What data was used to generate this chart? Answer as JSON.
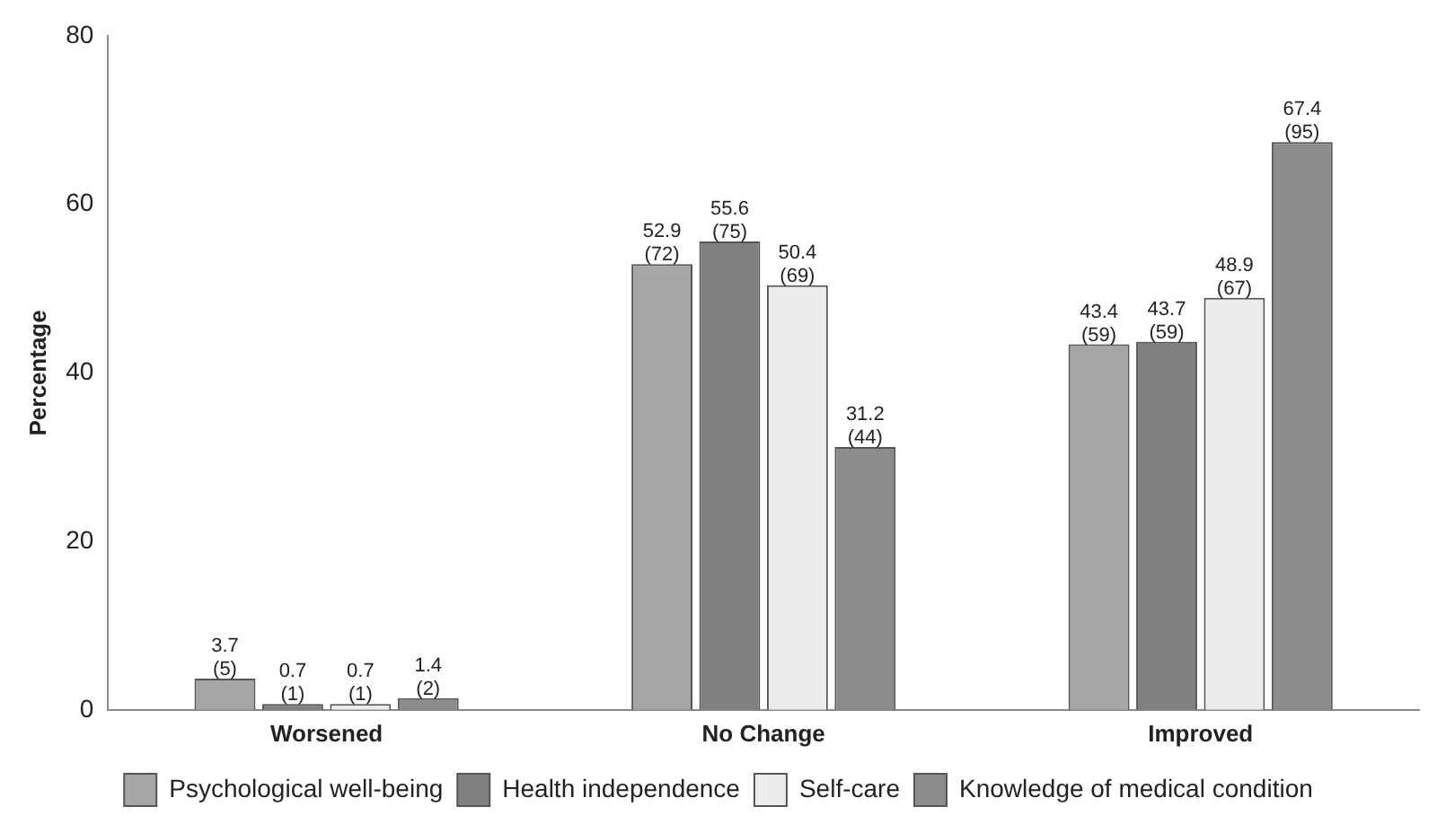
{
  "chart_data": {
    "type": "bar",
    "ylabel": "Percentage",
    "categories": [
      "Worsened",
      "No Change",
      "Improved"
    ],
    "series": [
      {
        "name": "Psychological well-being",
        "color": "#a6a6a6",
        "values": [
          3.7,
          52.9,
          43.4
        ],
        "value_labels": [
          "3.7 (5)",
          "52.9 (72)",
          "43.4 (59)"
        ]
      },
      {
        "name": "Health independence",
        "color": "#808080",
        "values": [
          0.7,
          55.6,
          43.7
        ],
        "value_labels": [
          "0.7 (1)",
          "55.6 (75)",
          "43.7 (59)"
        ]
      },
      {
        "name": "Self-care",
        "color": "#ececec",
        "values": [
          0.7,
          50.4,
          48.9
        ],
        "value_labels": [
          "0.7 (1)",
          "50.4 (69)",
          "48.9 (67)"
        ]
      },
      {
        "name": "Knowledge of medical condition",
        "color": "#8c8c8c",
        "values": [
          1.4,
          31.2,
          67.4
        ],
        "value_labels": [
          "1.4 (2)",
          "31.2 (44)",
          "67.4 (95)"
        ]
      }
    ],
    "ylim": [
      0,
      80
    ],
    "yticks": [
      0,
      20,
      40,
      60,
      80
    ],
    "grid": false,
    "legend": "bottom"
  }
}
